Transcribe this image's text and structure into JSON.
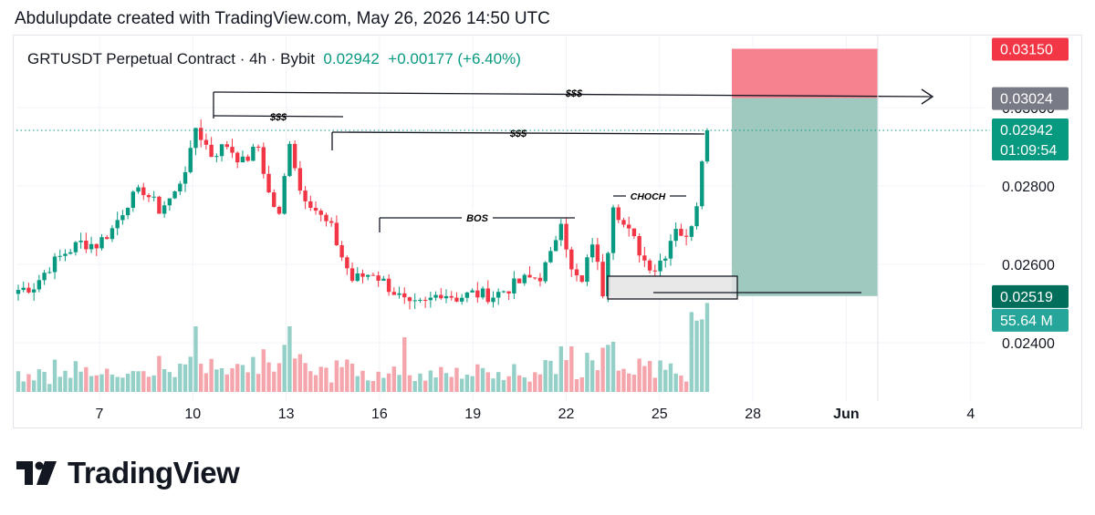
{
  "header": {
    "text": "Abdulupdate created with TradingView.com, May 26, 2026 14:50 UTC"
  },
  "symbol_bar": {
    "title": "GRTUSDT Perpetual Contract · 4h · Bybit",
    "price": "0.02942",
    "change": "+0.00177 (+6.40%)"
  },
  "colors": {
    "up": "#089981",
    "down": "#f23645",
    "up_volume": "#94d0c8",
    "down_volume": "#f5a6ad",
    "stop_zone": "#f7828f",
    "target_zone": "#9fc9bf",
    "order_block": "#e4e4e4"
  },
  "price_scale": {
    "ticks": [
      "0.02400",
      "0.02600",
      "0.02800",
      "0.03000"
    ],
    "labels": {
      "stop": "0.03150",
      "target": "0.03024",
      "last": "0.02942",
      "countdown": "01:09:54",
      "entry": "0.02519",
      "volume": "55.64 M"
    }
  },
  "time_scale": {
    "ticks": [
      "7",
      "10",
      "13",
      "16",
      "19",
      "22",
      "25",
      "28",
      "Jun",
      "4"
    ]
  },
  "annotations": {
    "liq_top": "$$$",
    "liq_left": "$$$",
    "liq_mid": "$$$",
    "bos": "BOS",
    "choch": "CHOCH"
  },
  "brand": {
    "name": "TradingView"
  },
  "chart_data": {
    "type": "candlestick",
    "interval": "4h",
    "ylim": [
      0.0233,
      0.0321
    ],
    "last_price": 0.02942,
    "entry": 0.02519,
    "stop": 0.0315,
    "target": 0.03024,
    "anchors": [
      [
        0,
        0.02535
      ],
      [
        3,
        0.02545
      ],
      [
        6,
        0.02595
      ],
      [
        9,
        0.0263
      ],
      [
        12,
        0.02655
      ],
      [
        15,
        0.0265
      ],
      [
        18,
        0.0269
      ],
      [
        21,
        0.0276
      ],
      [
        24,
        0.0279
      ],
      [
        27,
        0.0274
      ],
      [
        30,
        0.0278
      ],
      [
        33,
        0.0288
      ],
      [
        34,
        0.0295
      ],
      [
        37,
        0.0288
      ],
      [
        40,
        0.02905
      ],
      [
        43,
        0.0286
      ],
      [
        46,
        0.029
      ],
      [
        48,
        0.0278
      ],
      [
        50,
        0.0272
      ],
      [
        52,
        0.0292
      ],
      [
        54,
        0.0279
      ],
      [
        56,
        0.0276
      ],
      [
        58,
        0.0272
      ],
      [
        60,
        0.0269
      ],
      [
        62,
        0.0262
      ],
      [
        64,
        0.0256
      ],
      [
        68,
        0.0258
      ],
      [
        72,
        0.0253
      ],
      [
        75,
        0.0249
      ],
      [
        78,
        0.025
      ],
      [
        81,
        0.0253
      ],
      [
        84,
        0.02515
      ],
      [
        87,
        0.02525
      ],
      [
        91,
        0.0252
      ],
      [
        94,
        0.0254
      ],
      [
        97,
        0.0256
      ],
      [
        100,
        0.0257
      ],
      [
        102,
        0.0262
      ],
      [
        104,
        0.0272
      ],
      [
        106,
        0.0258
      ],
      [
        108,
        0.0255
      ],
      [
        110,
        0.0266
      ],
      [
        112,
        0.0253
      ],
      [
        114,
        0.0276
      ],
      [
        116,
        0.027
      ],
      [
        118,
        0.0266
      ],
      [
        120,
        0.0261
      ],
      [
        122,
        0.0259
      ],
      [
        124,
        0.0263
      ],
      [
        126,
        0.027
      ],
      [
        128,
        0.0266
      ],
      [
        130,
        0.0276
      ],
      [
        131,
        0.0288
      ],
      [
        132,
        0.02942
      ]
    ],
    "volume_unit": "M",
    "last_volume": 55.64
  }
}
